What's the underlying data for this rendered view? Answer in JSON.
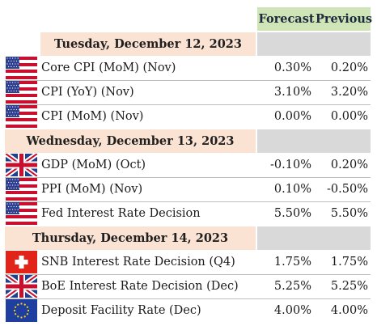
{
  "columns": {
    "forecast": "Forecast",
    "previous": "Previous"
  },
  "groups": [
    {
      "date": "Tuesday, December 12, 2023",
      "rows": [
        {
          "flag": "us-flag-icon",
          "event": "Core CPI (MoM) (Nov)",
          "forecast": "0.30%",
          "previous": "0.20%"
        },
        {
          "flag": "us-flag-icon",
          "event": "CPI (YoY) (Nov)",
          "forecast": "3.10%",
          "previous": "3.20%"
        },
        {
          "flag": "us-flag-icon",
          "event": "CPI (MoM) (Nov)",
          "forecast": "0.00%",
          "previous": "0.00%"
        }
      ]
    },
    {
      "date": "Wednesday, December 13, 2023",
      "rows": [
        {
          "flag": "uk-flag-icon",
          "event": "GDP (MoM) (Oct)",
          "forecast": "-0.10%",
          "previous": "0.20%"
        },
        {
          "flag": "us-flag-icon",
          "event": "PPI (MoM) (Nov)",
          "forecast": "0.10%",
          "previous": "-0.50%"
        },
        {
          "flag": "us-flag-icon",
          "event": "Fed Interest Rate Decision",
          "forecast": "5.50%",
          "previous": "5.50%"
        }
      ]
    },
    {
      "date": "Thursday, December 14, 2023",
      "rows": [
        {
          "flag": "switzerland-flag-icon",
          "event": "SNB Interest Rate Decision (Q4)",
          "forecast": "1.75%",
          "previous": "1.75%"
        },
        {
          "flag": "uk-flag-icon",
          "event": "BoE Interest Rate Decision (Dec)",
          "forecast": "5.25%",
          "previous": "5.25%"
        },
        {
          "flag": "eu-flag-icon",
          "event": "Deposit Facility Rate (Dec)",
          "forecast": "4.00%",
          "previous": "4.00%"
        }
      ]
    }
  ],
  "colors": {
    "header_bg": "#cfe5b8",
    "date_bg": "#fbe3d4",
    "gray_bg": "#d9d9d9"
  }
}
